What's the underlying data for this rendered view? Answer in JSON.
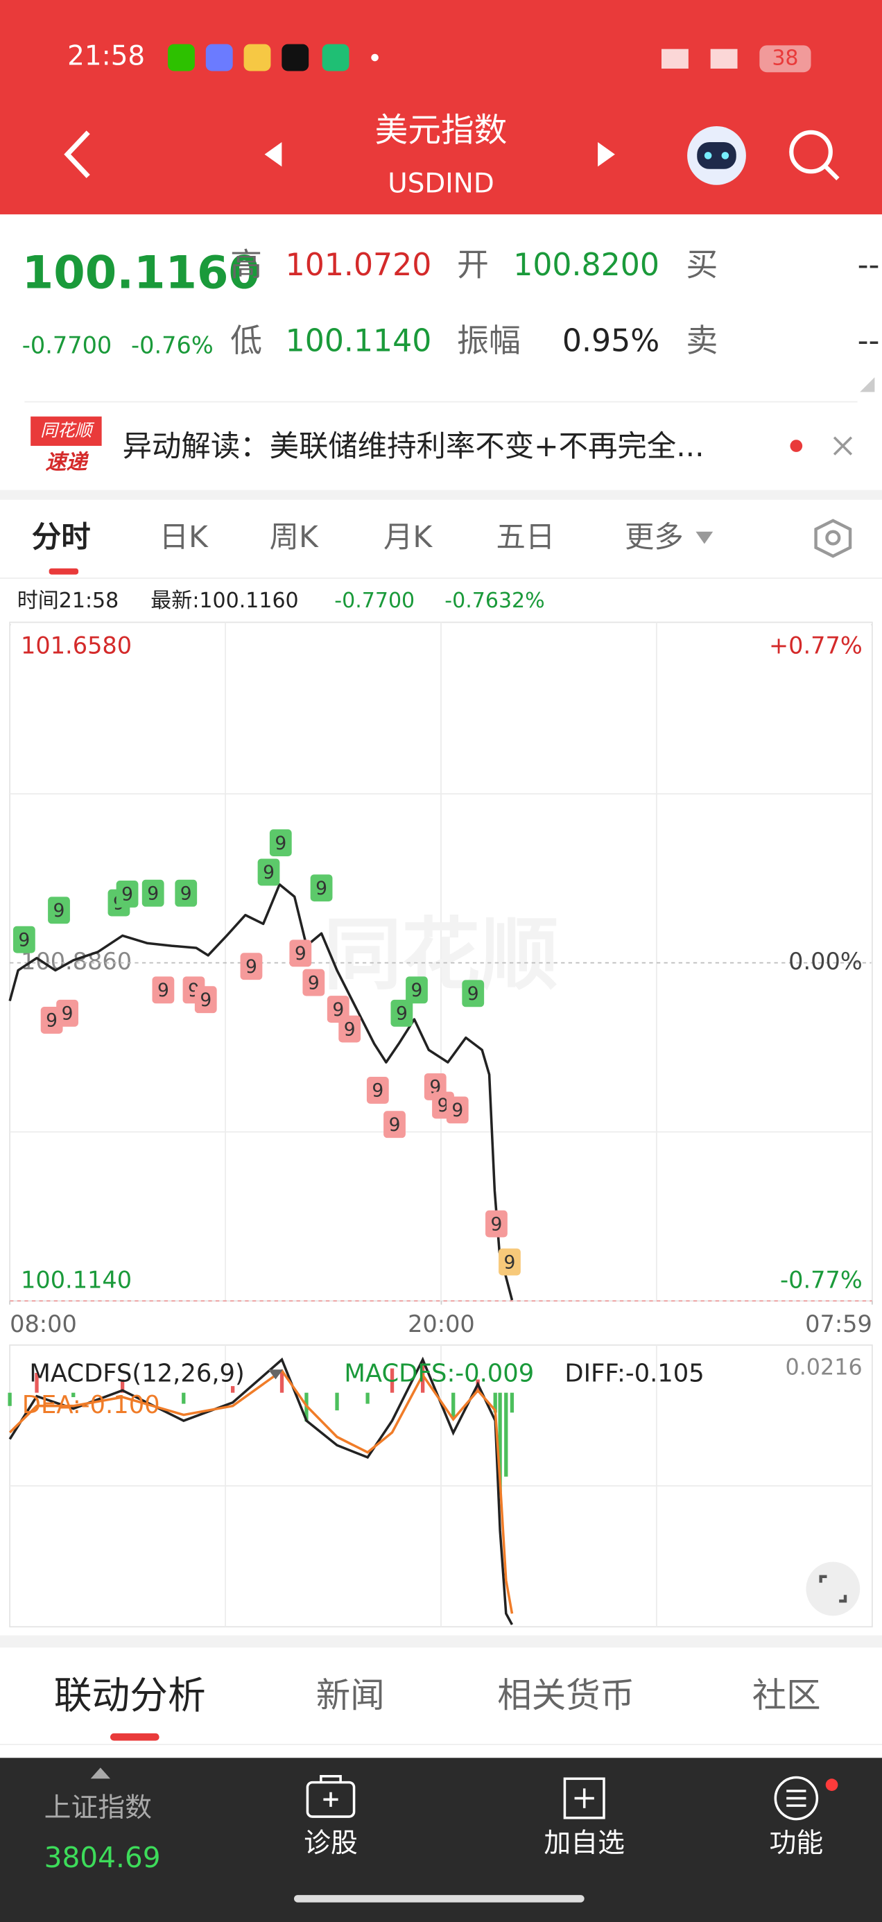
{
  "status_bar": {
    "time": "21:58",
    "battery": "38"
  },
  "header": {
    "title": "美元指数",
    "subtitle": "USDIND"
  },
  "quote": {
    "price": "100.1160",
    "change": "-0.7700",
    "change_pct": "-0.76%",
    "high_label": "高",
    "high": "101.0720",
    "open_label": "开",
    "open": "100.8200",
    "buy_label": "买",
    "buy": "--",
    "low_label": "低",
    "low": "100.1140",
    "amplitude_label": "振幅",
    "amplitude": "0.95%",
    "sell_label": "卖",
    "sell": "--"
  },
  "news": {
    "badge_top": "同花顺",
    "badge_bottom": "速递",
    "text": "异动解读：美联储维持利率不变+不再完全..."
  },
  "chart_tabs": [
    "分时",
    "日K",
    "周K",
    "月K",
    "五日",
    "更多"
  ],
  "info": {
    "time": "时间21:58",
    "latest": "最新:100.1160",
    "change": "-0.7700",
    "change_pct": "-0.7632%"
  },
  "chart_data": [
    {
      "type": "line",
      "watermark": "同花顺",
      "grid": true,
      "xlim": [
        0,
        1439
      ],
      "xticks": [
        {
          "value": 0,
          "label": "08:00"
        },
        {
          "value": 720,
          "label": "20:00"
        },
        {
          "value": 1439,
          "label": "07:59"
        }
      ],
      "ylim": [
        100.114,
        101.658
      ],
      "yticks": [
        {
          "value": 100.114,
          "label": "100.1140"
        },
        {
          "value": 100.886,
          "label": "100.8860"
        },
        {
          "value": 101.658,
          "label": "101.6580"
        }
      ],
      "y2lim": [
        -0.77,
        0.77
      ],
      "y2ticks": [
        {
          "value": -0.77,
          "label": "-0.77%"
        },
        {
          "value": 0,
          "label": "0.00%"
        },
        {
          "value": 0.77,
          "label": "+0.77%"
        }
      ],
      "series": [
        {
          "color": "#222222",
          "x": [
            0,
            14,
            45,
            76,
            106,
            147,
            188,
            229,
            270,
            311,
            331,
            362,
            393,
            423,
            450,
            475,
            495,
            520,
            546,
            577,
            608,
            628,
            649,
            675,
            699,
            731,
            761,
            788,
            800,
            809,
            817,
            838
          ],
          "values": [
            100.799,
            100.869,
            100.897,
            100.869,
            100.892,
            100.911,
            100.948,
            100.931,
            100.925,
            100.92,
            100.903,
            100.948,
            100.995,
            100.975,
            101.065,
            101.037,
            100.925,
            100.953,
            100.869,
            100.785,
            100.701,
            100.659,
            100.701,
            100.757,
            100.687,
            100.659,
            100.715,
            100.687,
            100.631,
            100.366,
            100.226,
            100.116
          ]
        }
      ],
      "markers": [
        {
          "x": 24,
          "value": 100.939,
          "label": "9",
          "color": "#5cc96a"
        },
        {
          "x": 82,
          "value": 101.006,
          "label": "9",
          "color": "#5cc96a"
        },
        {
          "x": 182,
          "value": 101.023,
          "label": "9",
          "color": "#5cc96a"
        },
        {
          "x": 196,
          "value": 101.043,
          "label": "9",
          "color": "#5cc96a"
        },
        {
          "x": 239,
          "value": 101.045,
          "label": "9",
          "color": "#5cc96a"
        },
        {
          "x": 294,
          "value": 101.045,
          "label": "9",
          "color": "#5cc96a"
        },
        {
          "x": 432,
          "value": 101.093,
          "label": "9",
          "color": "#5cc96a"
        },
        {
          "x": 452,
          "value": 101.16,
          "label": "9",
          "color": "#5cc96a"
        },
        {
          "x": 520,
          "value": 101.057,
          "label": "9",
          "color": "#5cc96a"
        },
        {
          "x": 654,
          "value": 100.771,
          "label": "9",
          "color": "#5cc96a"
        },
        {
          "x": 679,
          "value": 100.824,
          "label": "9",
          "color": "#5cc96a"
        },
        {
          "x": 773,
          "value": 100.816,
          "label": "9",
          "color": "#5cc96a"
        },
        {
          "x": 70,
          "value": 100.755,
          "label": "9",
          "color": "#f59a9a"
        },
        {
          "x": 96,
          "value": 100.771,
          "label": "9",
          "color": "#f59a9a"
        },
        {
          "x": 256,
          "value": 100.824,
          "label": "9",
          "color": "#f59a9a"
        },
        {
          "x": 307,
          "value": 100.824,
          "label": "9",
          "color": "#f59a9a"
        },
        {
          "x": 327,
          "value": 100.802,
          "label": "9",
          "color": "#f59a9a"
        },
        {
          "x": 403,
          "value": 100.878,
          "label": "9",
          "color": "#f59a9a"
        },
        {
          "x": 485,
          "value": 100.908,
          "label": "9",
          "color": "#f59a9a"
        },
        {
          "x": 507,
          "value": 100.841,
          "label": "9",
          "color": "#f59a9a"
        },
        {
          "x": 548,
          "value": 100.78,
          "label": "9",
          "color": "#f59a9a"
        },
        {
          "x": 567,
          "value": 100.735,
          "label": "9",
          "color": "#f59a9a"
        },
        {
          "x": 614,
          "value": 100.595,
          "label": "9",
          "color": "#f59a9a"
        },
        {
          "x": 642,
          "value": 100.517,
          "label": "9",
          "color": "#f59a9a"
        },
        {
          "x": 710,
          "value": 100.603,
          "label": "9",
          "color": "#f59a9a"
        },
        {
          "x": 723,
          "value": 100.561,
          "label": "9",
          "color": "#f59a9a"
        },
        {
          "x": 747,
          "value": 100.55,
          "label": "9",
          "color": "#f59a9a"
        },
        {
          "x": 812,
          "value": 100.29,
          "label": "9",
          "color": "#f59a9a"
        },
        {
          "x": 834,
          "value": 100.203,
          "label": "9",
          "color": "#f7c97a"
        }
      ]
    },
    {
      "type": "macd",
      "title": "MACDFS(12,26,9)",
      "xlim": [
        0,
        1439
      ],
      "ylim": [
        -0.106,
        0.0216
      ],
      "yticks": [
        0.0216
      ],
      "x": [
        0,
        45,
        106,
        188,
        290,
        372,
        454,
        495,
        546,
        597,
        638,
        689,
        740,
        781,
        810,
        818,
        828,
        838
      ],
      "series": [
        {
          "name": "DIFF",
          "label": "DIFF:-0.105",
          "color": "#222222",
          "values": [
            -0.021,
            -0.0016,
            -0.0072,
            0.0011,
            -0.0127,
            -0.0044,
            0.015,
            -0.0127,
            -0.0238,
            -0.0293,
            -0.0127,
            0.015,
            -0.0182,
            0.0039,
            -0.0127,
            -0.0625,
            -0.1,
            -0.105
          ]
        },
        {
          "name": "DEA",
          "label": "DEA:-0.100",
          "color": "#f07c28",
          "values": [
            -0.018,
            -0.006,
            -0.006,
            -0.002,
            -0.01,
            -0.006,
            0.01,
            -0.006,
            -0.02,
            -0.027,
            -0.018,
            0.008,
            -0.012,
            0.001,
            -0.008,
            -0.04,
            -0.085,
            -0.1
          ]
        }
      ],
      "histogram": {
        "name": "MACDFS",
        "label": "MACDFS:-0.009",
        "up_color": "#e85a5a",
        "down_color": "#4cbf5c",
        "values": [
          -0.006,
          0.009,
          -0.002,
          0.006,
          -0.005,
          0.003,
          0.01,
          -0.013,
          -0.008,
          -0.005,
          0.011,
          0.014,
          -0.012,
          0.006,
          -0.009,
          -0.045,
          -0.038,
          -0.009
        ]
      }
    }
  ],
  "bottom_tabs": [
    "联动分析",
    "新闻",
    "相关货币",
    "社区"
  ],
  "bottom_nav": {
    "index_name": "上证指数",
    "index_value": "3804.69",
    "items": [
      "诊股",
      "加自选",
      "功能"
    ]
  }
}
